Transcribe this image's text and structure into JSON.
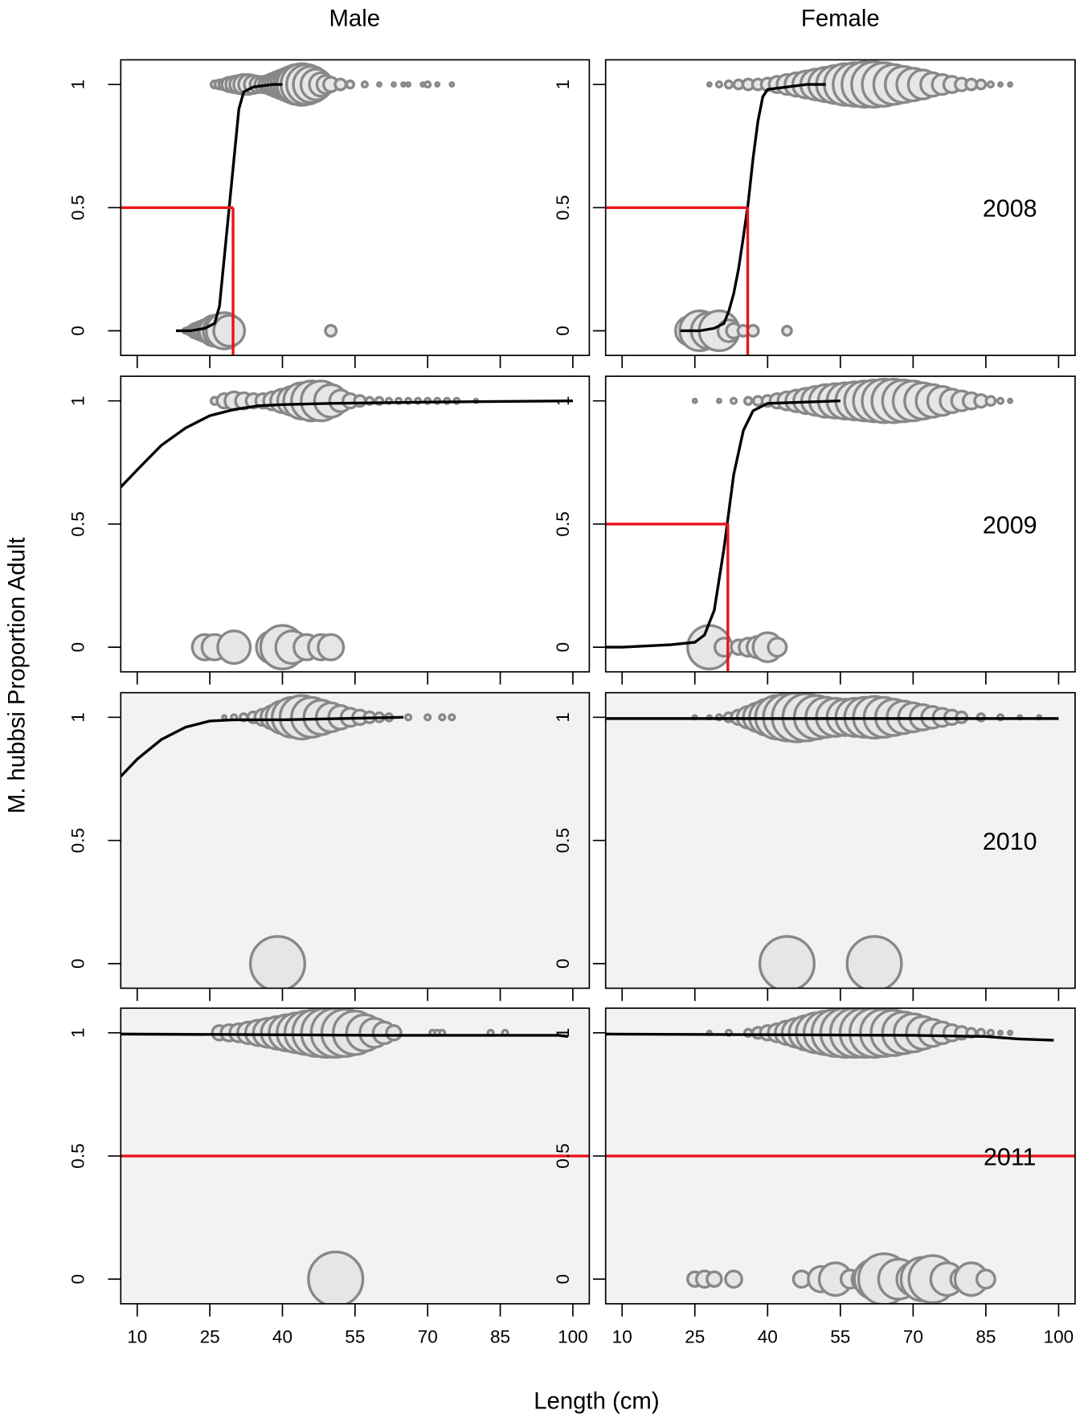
{
  "column_titles": [
    "Male",
    "Female"
  ],
  "y_label": "M. hubbsi  Proportion  Adult",
  "x_label": "Length  (cm)",
  "colors": {
    "bubble_fill": "#e6e6e6",
    "bubble_stroke": "#888888",
    "curve": "#000000",
    "maturity_line": "#e8141c"
  },
  "chart_data": [
    {
      "type": "bubble",
      "background": "#ffffff",
      "xlim": [
        6.6,
        103.4
      ],
      "ylim": [
        -0.1,
        1.1
      ],
      "xticks": [
        10,
        25,
        40,
        55,
        70,
        85,
        100
      ],
      "yticks": [
        0,
        0.5,
        1
      ],
      "points": [
        {
          "y": 0,
          "x": [
            20,
            21,
            22,
            23,
            24,
            25,
            26,
            27,
            28,
            29,
            50
          ],
          "sizes": [
            3,
            5,
            8,
            10,
            12,
            14,
            17,
            18,
            20,
            17,
            6
          ]
        },
        {
          "y": 1,
          "x": [
            26,
            27,
            28,
            29,
            30,
            31,
            32,
            33,
            34,
            35,
            36,
            37,
            38,
            39,
            40,
            41,
            42,
            43,
            44,
            45,
            46,
            47,
            48,
            49,
            50,
            52,
            54,
            57,
            60,
            63,
            65,
            66,
            69,
            70,
            72,
            75
          ],
          "sizes": [
            4,
            5,
            6,
            8,
            9,
            10,
            11,
            11,
            10,
            9,
            9,
            10,
            12,
            14,
            16,
            18,
            20,
            22,
            23,
            22,
            20,
            17,
            13,
            10,
            8,
            6,
            4,
            3,
            2,
            2,
            2,
            2,
            2,
            3,
            2,
            2
          ]
        }
      ],
      "curve": {
        "x": [
          18,
          21,
          24,
          26,
          27,
          28,
          29,
          30,
          31,
          32,
          34,
          38,
          40
        ],
        "y": [
          0,
          0,
          0.01,
          0.03,
          0.1,
          0.3,
          0.5,
          0.7,
          0.9,
          0.97,
          0.99,
          1,
          1
        ]
      },
      "maturity_line": {
        "x": 29.8,
        "y": 0.5
      }
    },
    {
      "type": "bubble",
      "label": "2008",
      "background": "#ffffff",
      "xlim": [
        6.6,
        103.4
      ],
      "ylim": [
        -0.1,
        1.1
      ],
      "xticks": [
        10,
        25,
        40,
        55,
        70,
        85,
        100
      ],
      "yticks": [
        0,
        0.5,
        1
      ],
      "points": [
        {
          "y": 0,
          "x": [
            24,
            26,
            28,
            30,
            32,
            33,
            35,
            37,
            44
          ],
          "sizes": [
            16,
            22,
            20,
            22,
            12,
            8,
            6,
            6,
            5
          ]
        },
        {
          "y": 1,
          "x": [
            28,
            30,
            32,
            34,
            36,
            38,
            40,
            42,
            44,
            46,
            48,
            50,
            52,
            54,
            56,
            58,
            60,
            62,
            64,
            66,
            68,
            70,
            72,
            74,
            76,
            78,
            80,
            82,
            84,
            86,
            88,
            90
          ],
          "sizes": [
            2,
            3,
            4,
            5,
            6,
            6,
            7,
            9,
            11,
            13,
            15,
            17,
            19,
            21,
            23,
            24,
            25,
            25,
            24,
            22,
            20,
            18,
            16,
            13,
            11,
            9,
            7,
            6,
            5,
            3,
            2,
            2
          ]
        }
      ],
      "curve": {
        "x": [
          22,
          26,
          29,
          31,
          32,
          33,
          34,
          35,
          36,
          37,
          38,
          39,
          40,
          44,
          48,
          52
        ],
        "y": [
          0,
          0,
          0.01,
          0.03,
          0.08,
          0.15,
          0.25,
          0.38,
          0.52,
          0.7,
          0.85,
          0.95,
          0.98,
          0.99,
          1,
          1
        ]
      },
      "maturity_line": {
        "x": 35.9,
        "y": 0.5
      }
    },
    {
      "type": "bubble",
      "background": "#ffffff",
      "xlim": [
        6.6,
        103.4
      ],
      "ylim": [
        -0.1,
        1.1
      ],
      "xticks": [
        10,
        25,
        40,
        55,
        70,
        85,
        100
      ],
      "yticks": [
        0,
        0.5,
        1
      ],
      "points": [
        {
          "y": 0,
          "x": [
            24,
            26,
            30,
            38,
            40,
            42,
            45,
            48,
            50
          ],
          "sizes": [
            14,
            14,
            18,
            18,
            24,
            18,
            14,
            14,
            14
          ]
        },
        {
          "y": 1,
          "x": [
            26,
            28,
            30,
            32,
            34,
            36,
            38,
            40,
            42,
            44,
            46,
            48,
            50,
            52,
            54,
            56,
            58,
            60,
            62,
            64,
            66,
            68,
            70,
            72,
            74,
            76,
            80
          ],
          "sizes": [
            4,
            8,
            10,
            9,
            8,
            8,
            10,
            13,
            16,
            20,
            22,
            22,
            18,
            12,
            8,
            6,
            4,
            4,
            3,
            3,
            3,
            3,
            3,
            3,
            3,
            3,
            2
          ]
        }
      ],
      "curve": {
        "x": [
          6.6,
          10,
          15,
          20,
          25,
          30,
          35,
          40,
          50,
          70,
          100
        ],
        "y": [
          0.65,
          0.72,
          0.82,
          0.89,
          0.94,
          0.965,
          0.98,
          0.985,
          0.99,
          0.995,
          1
        ]
      }
    },
    {
      "type": "bubble",
      "label": "2009",
      "background": "#ffffff",
      "xlim": [
        6.6,
        103.4
      ],
      "ylim": [
        -0.1,
        1.1
      ],
      "xticks": [
        10,
        25,
        40,
        55,
        70,
        85,
        100
      ],
      "yticks": [
        0,
        0.5,
        1
      ],
      "points": [
        {
          "y": 0,
          "x": [
            28,
            31,
            34,
            36,
            38,
            40,
            42
          ],
          "sizes": [
            24,
            10,
            8,
            10,
            12,
            16,
            10
          ]
        },
        {
          "y": 1,
          "x": [
            25,
            30,
            33,
            36,
            38,
            40,
            42,
            44,
            46,
            48,
            50,
            52,
            54,
            56,
            58,
            60,
            62,
            64,
            66,
            68,
            70,
            72,
            74,
            76,
            78,
            80,
            82,
            84,
            86,
            88,
            90
          ],
          "sizes": [
            2,
            2,
            3,
            4,
            5,
            6,
            8,
            10,
            12,
            14,
            16,
            18,
            19,
            20,
            21,
            22,
            23,
            24,
            24,
            23,
            22,
            20,
            18,
            16,
            13,
            11,
            9,
            7,
            5,
            3,
            2
          ]
        }
      ],
      "curve": {
        "x": [
          6.6,
          10,
          20,
          25,
          27,
          29,
          31,
          32,
          33,
          35,
          37,
          40,
          55
        ],
        "y": [
          0,
          0,
          0.01,
          0.02,
          0.05,
          0.15,
          0.4,
          0.55,
          0.7,
          0.88,
          0.96,
          0.99,
          1
        ]
      },
      "maturity_line": {
        "x": 31.8,
        "y": 0.5
      }
    },
    {
      "type": "bubble",
      "background": "#f2f2f2",
      "xlim": [
        6.6,
        103.4
      ],
      "ylim": [
        -0.1,
        1.1
      ],
      "xticks": [
        10,
        25,
        40,
        55,
        70,
        85,
        100
      ],
      "yticks": [
        0,
        0.5,
        1
      ],
      "points": [
        {
          "y": 0,
          "x": [
            39
          ],
          "sizes": [
            30
          ]
        },
        {
          "y": 1,
          "x": [
            28,
            30,
            32,
            34,
            36,
            38,
            40,
            42,
            44,
            46,
            48,
            50,
            52,
            54,
            56,
            58,
            60,
            62,
            66,
            70,
            73,
            75
          ],
          "sizes": [
            2,
            3,
            4,
            6,
            9,
            13,
            18,
            22,
            24,
            22,
            19,
            16,
            13,
            10,
            8,
            6,
            5,
            4,
            3,
            3,
            3,
            3
          ]
        }
      ],
      "curve": {
        "x": [
          6.6,
          10,
          15,
          20,
          25,
          30,
          40,
          65
        ],
        "y": [
          0.76,
          0.83,
          0.91,
          0.96,
          0.985,
          0.99,
          0.99,
          1
        ]
      }
    },
    {
      "type": "bubble",
      "label": "2010",
      "background": "#f2f2f2",
      "xlim": [
        6.6,
        103.4
      ],
      "ylim": [
        -0.1,
        1.1
      ],
      "xticks": [
        10,
        25,
        40,
        55,
        70,
        85,
        100
      ],
      "yticks": [
        0,
        0.5,
        1
      ],
      "points": [
        {
          "y": 0,
          "x": [
            44,
            62
          ],
          "sizes": [
            30,
            30
          ]
        },
        {
          "y": 1,
          "x": [
            25,
            28,
            30,
            32,
            34,
            36,
            38,
            40,
            42,
            44,
            46,
            48,
            50,
            52,
            54,
            56,
            58,
            60,
            62,
            64,
            66,
            68,
            70,
            72,
            74,
            76,
            78,
            80,
            84,
            88,
            92,
            96
          ],
          "sizes": [
            2,
            2,
            3,
            5,
            8,
            12,
            16,
            20,
            24,
            26,
            27,
            26,
            24,
            22,
            21,
            20,
            21,
            22,
            23,
            22,
            20,
            18,
            16,
            14,
            12,
            10,
            8,
            6,
            4,
            3,
            2,
            2
          ]
        }
      ],
      "curve": {
        "x": [
          6.6,
          100
        ],
        "y": [
          0.995,
          0.995
        ]
      }
    },
    {
      "type": "bubble",
      "background": "#f2f2f2",
      "xlim": [
        6.6,
        103.4
      ],
      "ylim": [
        -0.1,
        1.1
      ],
      "xticks": [
        10,
        25,
        40,
        55,
        70,
        85,
        100
      ],
      "yticks": [
        0,
        0.5,
        1
      ],
      "points": [
        {
          "y": 0,
          "x": [
            51
          ],
          "sizes": [
            30
          ]
        },
        {
          "y": 1,
          "x": [
            27,
            29,
            31,
            33,
            35,
            37,
            39,
            41,
            43,
            45,
            47,
            49,
            51,
            53,
            55,
            57,
            59,
            61,
            63,
            71,
            72,
            73,
            83,
            86
          ],
          "sizes": [
            8,
            9,
            10,
            12,
            14,
            16,
            18,
            20,
            22,
            24,
            26,
            27,
            27,
            26,
            24,
            20,
            16,
            12,
            8,
            3,
            3,
            3,
            3,
            3
          ]
        }
      ],
      "curve": {
        "x": [
          6.6,
          60,
          97,
          99
        ],
        "y": [
          0.995,
          0.99,
          0.99,
          0.985
        ]
      },
      "maturity_line": {
        "y": 0.5
      }
    },
    {
      "type": "bubble",
      "label": "2011",
      "background": "#f2f2f2",
      "xlim": [
        6.6,
        103.4
      ],
      "ylim": [
        -0.1,
        1.1
      ],
      "xticks": [
        10,
        25,
        40,
        55,
        70,
        85,
        100
      ],
      "yticks": [
        0,
        0.5,
        1
      ],
      "points": [
        {
          "y": 0,
          "x": [
            25,
            27,
            29,
            33,
            47,
            51,
            54,
            57,
            60,
            62,
            64,
            67,
            70,
            72,
            74,
            77,
            80,
            82,
            85
          ],
          "sizes": [
            8,
            9,
            8,
            9,
            9,
            14,
            18,
            10,
            14,
            22,
            28,
            22,
            18,
            24,
            26,
            18,
            12,
            18,
            10
          ]
        },
        {
          "y": 1,
          "x": [
            28,
            32,
            36,
            38,
            40,
            42,
            44,
            46,
            48,
            50,
            52,
            54,
            56,
            58,
            60,
            62,
            64,
            66,
            68,
            70,
            72,
            74,
            76,
            78,
            80,
            82,
            84,
            86,
            88,
            90
          ],
          "sizes": [
            2,
            3,
            4,
            6,
            8,
            10,
            13,
            16,
            19,
            22,
            24,
            26,
            27,
            27,
            27,
            27,
            26,
            25,
            23,
            21,
            18,
            15,
            12,
            9,
            7,
            5,
            4,
            3,
            2,
            2
          ]
        }
      ],
      "curve": {
        "x": [
          6.6,
          70,
          85,
          92,
          99
        ],
        "y": [
          0.995,
          0.99,
          0.985,
          0.975,
          0.97
        ]
      },
      "maturity_line": {
        "y": 0.5
      }
    }
  ]
}
